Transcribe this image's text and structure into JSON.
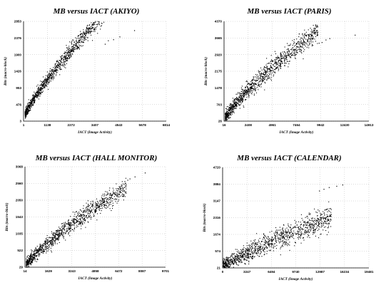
{
  "chart_data": [
    {
      "type": "scatter",
      "title": "MB versus IACT (AKIYO)",
      "xlabel": "IACT (Image Activity)",
      "ylabel": "Bits (macro-block)",
      "xticks": [
        "1",
        "1138",
        "2272",
        "3407",
        "4543",
        "5678",
        "6814"
      ],
      "yticks": [
        "3",
        "476",
        "953",
        "1426",
        "1900",
        "2376",
        "2853"
      ],
      "xlim": [
        1,
        6814
      ],
      "ylim": [
        3,
        2853
      ],
      "grid": true,
      "trend": {
        "a": 3.4,
        "b": 88,
        "xmin": 80,
        "xmax": 4200,
        "spread": 110
      },
      "outliers": [
        [
          4050,
          2300
        ],
        [
          4300,
          2330
        ],
        [
          4600,
          2410
        ],
        [
          5300,
          2590
        ],
        [
          3900,
          2200
        ]
      ]
    },
    {
      "type": "scatter",
      "title": "MB versus IACT (PARIS)",
      "xlabel": "IACT (Image Activity)",
      "ylabel": "Bits (macro-block)",
      "xticks": [
        "16",
        "2408",
        "4961",
        "7464",
        "9942",
        "12430",
        "14913"
      ],
      "yticks": [
        "26",
        "703",
        "1478",
        "2175",
        "2920",
        "3665",
        "4370"
      ],
      "xlim": [
        16,
        14913
      ],
      "ylim": [
        26,
        4370
      ],
      "grid": true,
      "trend": {
        "a": 2.1,
        "b": 80,
        "xmin": 150,
        "xmax": 9700,
        "spread": 230
      },
      "outliers": [
        [
          10100,
          3450
        ],
        [
          10500,
          3560
        ],
        [
          10900,
          3620
        ],
        [
          13500,
          3770
        ],
        [
          9800,
          3420
        ]
      ]
    },
    {
      "type": "scatter",
      "title": "MB versus IACT (HALL MONITOR)",
      "xlabel": "IACT (Image Activity)",
      "ylabel": "Bits (macro-block)",
      "xticks": [
        "14",
        "1629",
        "3243",
        "4858",
        "6472",
        "8087",
        "9701"
      ],
      "yticks": [
        "29",
        "522",
        "1035",
        "1543",
        "2050",
        "2560",
        "3068"
      ],
      "xlim": [
        14,
        9701
      ],
      "ylim": [
        29,
        3068
      ],
      "grid": true,
      "trend": {
        "a": 1.68,
        "b": 48,
        "xmin": 100,
        "xmax": 7000,
        "spread": 140
      },
      "outliers": [
        [
          7100,
          2660
        ],
        [
          7250,
          2700
        ],
        [
          7600,
          2760
        ],
        [
          8300,
          2880
        ],
        [
          6900,
          2620
        ]
      ]
    },
    {
      "type": "scatter",
      "title": "MB versus IACT (CALENDAR)",
      "xlabel": "IACT (Image Activity)",
      "ylabel": "Bits (macro-block)",
      "xticks": [
        "0",
        "3247",
        "6494",
        "9740",
        "12987",
        "16234",
        "19481"
      ],
      "yticks": [
        "21",
        "574",
        "1674",
        "2316",
        "3147",
        "3884",
        "4720"
      ],
      "xlim": [
        0,
        19481
      ],
      "ylim": [
        21,
        4720
      ],
      "grid": true,
      "trend": {
        "a": 0.9,
        "b": 28,
        "xmin": 100,
        "xmax": 14500,
        "spread": 260
      },
      "outliers": [
        [
          13500,
          3700
        ],
        [
          14200,
          3780
        ],
        [
          15200,
          3840
        ],
        [
          16000,
          3900
        ],
        [
          12900,
          3620
        ]
      ]
    }
  ]
}
